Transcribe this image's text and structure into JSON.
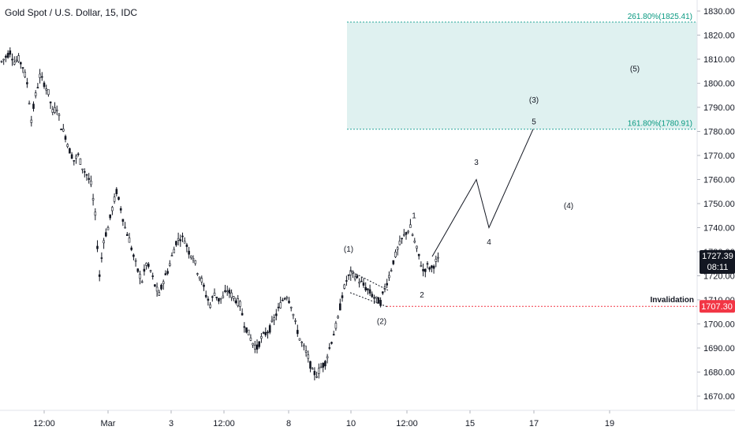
{
  "title": "Gold Spot / U.S. Dollar, 15, IDC",
  "colors": {
    "candle": "#131722",
    "fib_zone": "#dff1f0",
    "fib_line": "#26a69a",
    "fib_text": "#089981",
    "invalidation_line": "#f23645",
    "price_tag_bg": "#131722",
    "invalidation_tag_bg": "#f23645",
    "projection_line": "#131722",
    "channel_line": "#131722"
  },
  "chart_data": {
    "type": "candlestick",
    "ylim": [
      1665,
      1835
    ],
    "y_ticks": [
      "1670.00",
      "1680.00",
      "1690.00",
      "1700.00",
      "1710.00",
      "1720.00",
      "1730.00",
      "1740.00",
      "1750.00",
      "1760.00",
      "1770.00",
      "1780.00",
      "1790.00",
      "1800.00",
      "1810.00",
      "1820.00",
      "1830.00"
    ],
    "x_ticks": [
      "12:00",
      "Mar",
      "3",
      "12:00",
      "8",
      "10",
      "12:00",
      "15",
      "17",
      "19"
    ],
    "price_path": [
      [
        0,
        1809
      ],
      [
        2,
        1811
      ],
      [
        4,
        1813
      ],
      [
        6,
        1809
      ],
      [
        8,
        1810
      ],
      [
        10,
        1807
      ],
      [
        12,
        1800
      ],
      [
        14,
        1785
      ],
      [
        16,
        1795
      ],
      [
        18,
        1803
      ],
      [
        20,
        1800
      ],
      [
        22,
        1796
      ],
      [
        24,
        1788
      ],
      [
        26,
        1790
      ],
      [
        28,
        1782
      ],
      [
        30,
        1778
      ],
      [
        32,
        1772
      ],
      [
        34,
        1768
      ],
      [
        36,
        1770
      ],
      [
        38,
        1765
      ],
      [
        40,
        1762
      ],
      [
        42,
        1758
      ],
      [
        44,
        1745
      ],
      [
        46,
        1720
      ],
      [
        48,
        1735
      ],
      [
        50,
        1740
      ],
      [
        52,
        1748
      ],
      [
        54,
        1755
      ],
      [
        56,
        1748
      ],
      [
        58,
        1740
      ],
      [
        60,
        1735
      ],
      [
        62,
        1728
      ],
      [
        64,
        1722
      ],
      [
        66,
        1718
      ],
      [
        68,
        1725
      ],
      [
        70,
        1722
      ],
      [
        72,
        1716
      ],
      [
        74,
        1712
      ],
      [
        76,
        1718
      ],
      [
        78,
        1722
      ],
      [
        80,
        1728
      ],
      [
        82,
        1734
      ],
      [
        84,
        1736
      ],
      [
        86,
        1735
      ],
      [
        88,
        1730
      ],
      [
        90,
        1728
      ],
      [
        92,
        1722
      ],
      [
        94,
        1718
      ],
      [
        96,
        1712
      ],
      [
        98,
        1708
      ],
      [
        100,
        1713
      ],
      [
        102,
        1710
      ],
      [
        104,
        1711
      ],
      [
        106,
        1714
      ],
      [
        108,
        1712
      ],
      [
        110,
        1710
      ],
      [
        112,
        1708
      ],
      [
        114,
        1700
      ],
      [
        116,
        1696
      ],
      [
        118,
        1692
      ],
      [
        120,
        1690
      ],
      [
        122,
        1694
      ],
      [
        124,
        1696
      ],
      [
        126,
        1698
      ],
      [
        128,
        1702
      ],
      [
        130,
        1706
      ],
      [
        132,
        1710
      ],
      [
        134,
        1712
      ],
      [
        136,
        1708
      ],
      [
        138,
        1700
      ],
      [
        140,
        1694
      ],
      [
        142,
        1690
      ],
      [
        144,
        1686
      ],
      [
        146,
        1680
      ],
      [
        148,
        1679
      ],
      [
        150,
        1682
      ],
      [
        152,
        1684
      ],
      [
        154,
        1690
      ],
      [
        156,
        1696
      ],
      [
        158,
        1702
      ],
      [
        160,
        1712
      ],
      [
        162,
        1718
      ],
      [
        164,
        1721
      ],
      [
        166,
        1720
      ],
      [
        168,
        1718
      ],
      [
        170,
        1716
      ],
      [
        172,
        1714
      ],
      [
        174,
        1712
      ],
      [
        176,
        1710
      ],
      [
        178,
        1709
      ],
      [
        180,
        1715
      ],
      [
        182,
        1720
      ],
      [
        184,
        1726
      ],
      [
        186,
        1731
      ],
      [
        188,
        1735
      ],
      [
        190,
        1738
      ],
      [
        192,
        1740
      ],
      [
        194,
        1734
      ],
      [
        196,
        1728
      ],
      [
        198,
        1722
      ],
      [
        200,
        1724
      ],
      [
        202,
        1723
      ],
      [
        204,
        1726
      ],
      [
        206,
        1727
      ]
    ],
    "current_price": "1727.39",
    "countdown": "08:11",
    "invalidation_price": "1707.30",
    "fib_levels": [
      {
        "label": "261.80%(1825.41)",
        "value": 1825.41
      },
      {
        "label": "161.80%(1780.91)",
        "value": 1780.91
      }
    ],
    "invalidation_label": "Invalidation",
    "wave_labels": [
      {
        "text": "(1)",
        "anchor": "wave1"
      },
      {
        "text": "(2)",
        "anchor": "wave2"
      },
      {
        "text": "1",
        "anchor": "sub1"
      },
      {
        "text": "2",
        "anchor": "sub2"
      },
      {
        "text": "3",
        "anchor": "sub3"
      },
      {
        "text": "4",
        "anchor": "sub4"
      },
      {
        "text": "5",
        "anchor": "sub5"
      },
      {
        "text": "(3)",
        "anchor": "wave3"
      },
      {
        "text": "(4)",
        "anchor": "wave4"
      },
      {
        "text": "(5)",
        "anchor": "wave5"
      }
    ]
  }
}
